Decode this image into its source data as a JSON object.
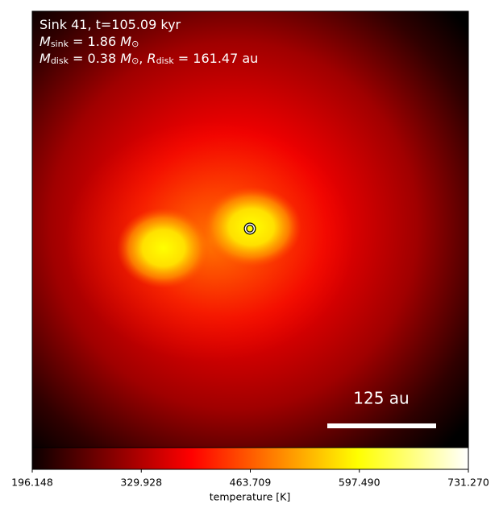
{
  "chart_data": {
    "type": "image",
    "annotations": [
      [
        {
          "text": "Sink 41, t=105.09 kyr"
        }
      ],
      [
        {
          "text": "M",
          "sub": "sink",
          "italic": true
        },
        {
          "text": " = 1.86 "
        },
        {
          "text": "M",
          "sub": "⊙",
          "italic": true
        }
      ],
      [
        {
          "text": "M",
          "sub": "disk",
          "italic": true
        },
        {
          "text": " = 0.38 "
        },
        {
          "text": "M",
          "sub": "⊙",
          "italic": true
        },
        {
          "text": ", "
        },
        {
          "text": "R",
          "sub": "disk",
          "italic": true
        },
        {
          "text": " = 161.47 au"
        }
      ]
    ],
    "scale_bar_label": "125 au",
    "colormap": "hot",
    "colorbar_label": "temperature [K]",
    "clim": [
      196.148,
      731.27
    ],
    "cticks": [
      196.148,
      329.928,
      463.709,
      {
        "value": 597.49,
        "label": "597.490"
      },
      {
        "value": 731.27,
        "label": "731.270"
      }
    ]
  }
}
